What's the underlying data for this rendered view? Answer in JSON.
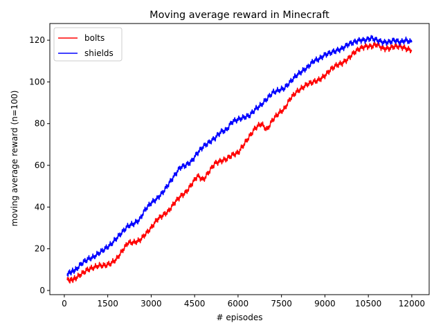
{
  "chart_data": {
    "type": "line",
    "title": "Moving average reward in Minecraft",
    "xlabel": "# episodes",
    "ylabel": "moving average reward (n=100)",
    "xlim": [
      -500,
      12600
    ],
    "ylim": [
      -2,
      128
    ],
    "xticks": [
      0,
      1500,
      3000,
      4500,
      6000,
      7500,
      9000,
      10500,
      12000
    ],
    "yticks": [
      0,
      20,
      40,
      60,
      80,
      100,
      120
    ],
    "grid": false,
    "legend": "top-left",
    "series": [
      {
        "name": "bolts",
        "color": "#ff0000",
        "points": [
          [
            100,
            5
          ],
          [
            250,
            5
          ],
          [
            400,
            6
          ],
          [
            600,
            8
          ],
          [
            800,
            10
          ],
          [
            1000,
            11
          ],
          [
            1200,
            12
          ],
          [
            1400,
            12
          ],
          [
            1600,
            13
          ],
          [
            1800,
            15
          ],
          [
            2000,
            19
          ],
          [
            2200,
            23
          ],
          [
            2400,
            23
          ],
          [
            2600,
            24
          ],
          [
            2800,
            27
          ],
          [
            3000,
            30
          ],
          [
            3200,
            34
          ],
          [
            3400,
            36
          ],
          [
            3600,
            38
          ],
          [
            3800,
            42
          ],
          [
            4000,
            45
          ],
          [
            4200,
            47
          ],
          [
            4400,
            51
          ],
          [
            4600,
            55
          ],
          [
            4800,
            53
          ],
          [
            5000,
            57
          ],
          [
            5200,
            61
          ],
          [
            5400,
            62
          ],
          [
            5600,
            63
          ],
          [
            5800,
            65
          ],
          [
            6000,
            66
          ],
          [
            6200,
            70
          ],
          [
            6400,
            74
          ],
          [
            6600,
            78
          ],
          [
            6800,
            80
          ],
          [
            7000,
            77
          ],
          [
            7200,
            82
          ],
          [
            7400,
            85
          ],
          [
            7600,
            87
          ],
          [
            7800,
            92
          ],
          [
            8000,
            95
          ],
          [
            8200,
            97
          ],
          [
            8400,
            99
          ],
          [
            8600,
            100
          ],
          [
            8800,
            101
          ],
          [
            9000,
            103
          ],
          [
            9200,
            106
          ],
          [
            9400,
            108
          ],
          [
            9600,
            109
          ],
          [
            9800,
            111
          ],
          [
            10000,
            114
          ],
          [
            10200,
            116
          ],
          [
            10400,
            117
          ],
          [
            10600,
            117
          ],
          [
            10800,
            118
          ],
          [
            11000,
            116
          ],
          [
            11200,
            116
          ],
          [
            11400,
            117
          ],
          [
            11600,
            117
          ],
          [
            11800,
            116
          ],
          [
            12000,
            115
          ]
        ]
      },
      {
        "name": "shields",
        "color": "#0000ff",
        "points": [
          [
            100,
            8
          ],
          [
            250,
            9
          ],
          [
            400,
            10
          ],
          [
            600,
            13
          ],
          [
            800,
            15
          ],
          [
            1000,
            16
          ],
          [
            1200,
            18
          ],
          [
            1400,
            20
          ],
          [
            1600,
            22
          ],
          [
            1800,
            25
          ],
          [
            2000,
            28
          ],
          [
            2200,
            31
          ],
          [
            2400,
            32
          ],
          [
            2600,
            34
          ],
          [
            2800,
            39
          ],
          [
            3000,
            42
          ],
          [
            3200,
            44
          ],
          [
            3400,
            47
          ],
          [
            3600,
            51
          ],
          [
            3800,
            55
          ],
          [
            4000,
            59
          ],
          [
            4200,
            60
          ],
          [
            4400,
            62
          ],
          [
            4600,
            66
          ],
          [
            4800,
            69
          ],
          [
            5000,
            71
          ],
          [
            5200,
            73
          ],
          [
            5400,
            76
          ],
          [
            5600,
            77
          ],
          [
            5800,
            81
          ],
          [
            6000,
            82
          ],
          [
            6200,
            83
          ],
          [
            6400,
            84
          ],
          [
            6600,
            87
          ],
          [
            6800,
            89
          ],
          [
            7000,
            92
          ],
          [
            7200,
            95
          ],
          [
            7400,
            96
          ],
          [
            7600,
            97
          ],
          [
            7800,
            100
          ],
          [
            8000,
            103
          ],
          [
            8200,
            105
          ],
          [
            8400,
            107
          ],
          [
            8600,
            110
          ],
          [
            8800,
            111
          ],
          [
            9000,
            113
          ],
          [
            9200,
            114
          ],
          [
            9400,
            115
          ],
          [
            9600,
            116
          ],
          [
            9800,
            118
          ],
          [
            10000,
            119
          ],
          [
            10200,
            120
          ],
          [
            10400,
            120
          ],
          [
            10600,
            121
          ],
          [
            10800,
            120
          ],
          [
            11000,
            119
          ],
          [
            11200,
            119
          ],
          [
            11400,
            120
          ],
          [
            11600,
            119
          ],
          [
            11800,
            120
          ],
          [
            12000,
            119
          ]
        ]
      }
    ]
  }
}
